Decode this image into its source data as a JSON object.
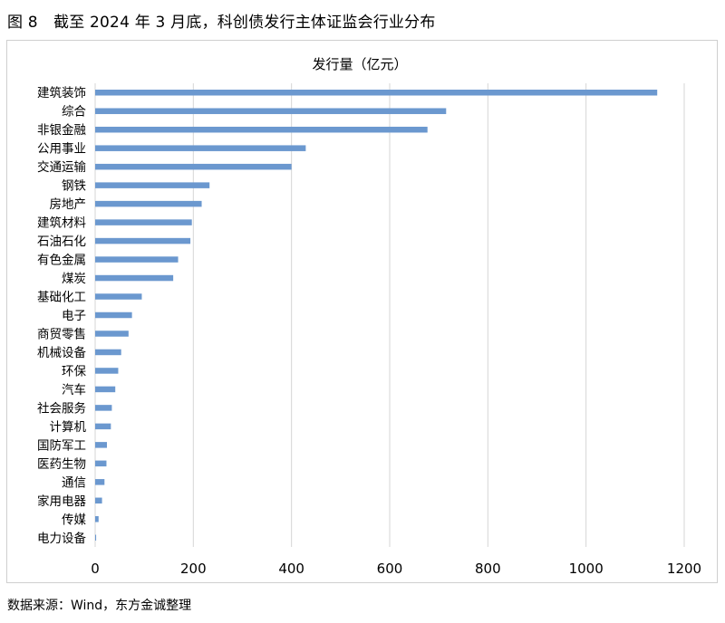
{
  "figure": {
    "title": "图 8　截至 2024 年 3 月底，科创债发行主体证监会行业分布",
    "source": "数据来源：Wind，东方金诚整理"
  },
  "chart_data": {
    "type": "bar",
    "orientation": "horizontal",
    "title": "发行量（亿元）",
    "xlabel": "",
    "ylabel": "",
    "xlim": [
      0,
      1200
    ],
    "x_ticks": [
      0,
      200,
      400,
      600,
      800,
      1000,
      1200
    ],
    "grid": "vertical",
    "legend": "none",
    "bar_color": "#6b98cf",
    "categories": [
      "建筑装饰",
      "综合",
      "非银金融",
      "公用事业",
      "交通运输",
      "钢铁",
      "房地产",
      "建筑材料",
      "石油石化",
      "有色金属",
      "煤炭",
      "基础化工",
      "电子",
      "商贸零售",
      "机械设备",
      "环保",
      "汽车",
      "社会服务",
      "计算机",
      "国防军工",
      "医药生物",
      "通信",
      "家用电器",
      "传媒",
      "电力设备"
    ],
    "values": [
      1145,
      715,
      677,
      429,
      400,
      233,
      217,
      197,
      194,
      169,
      159,
      95,
      75,
      68,
      53,
      47,
      41,
      34,
      32,
      24,
      23,
      19,
      14,
      7,
      2
    ]
  }
}
